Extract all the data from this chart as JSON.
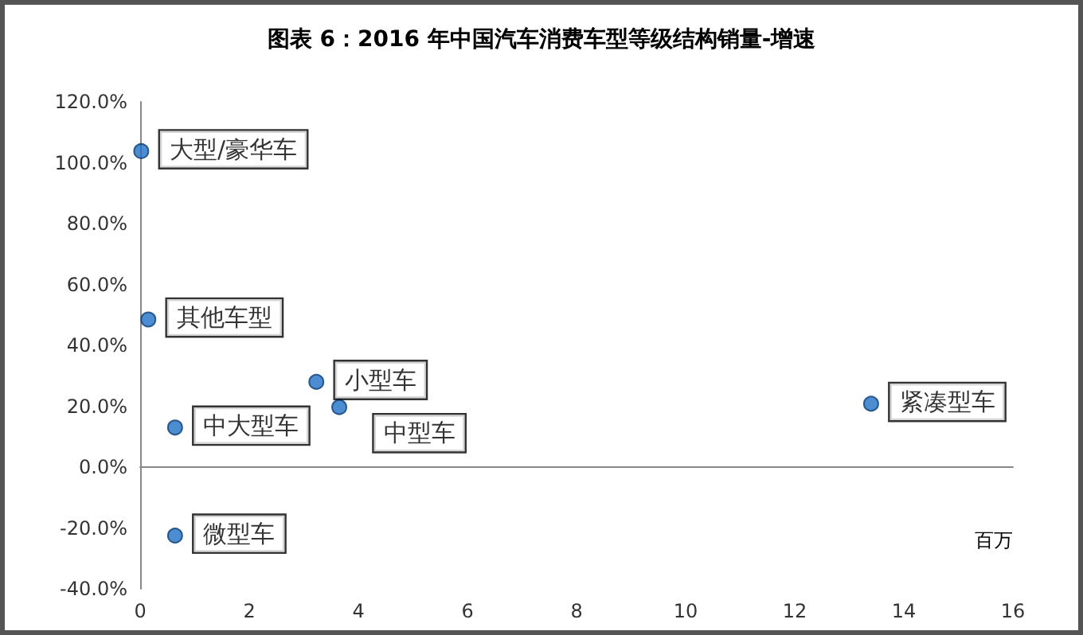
{
  "chart_data": {
    "type": "scatter",
    "title": "图表 6：2016 年中国汽车消费车型等级结构销量-增速",
    "xlabel": "百万",
    "series": [
      {
        "color": "#1f6fc5",
        "x": [
          0.02,
          0.15,
          0.64,
          0.64,
          3.23,
          3.65,
          13.4
        ],
        "values": [
          103.8,
          48.5,
          13.0,
          -22.5,
          28.0,
          19.7,
          20.8
        ],
        "value_labels": [
          "大型/豪华车",
          "其他车型",
          "中大型车",
          "微型车",
          "小型车",
          "中型车",
          "紧凑型车"
        ]
      }
    ],
    "xlim": [
      0,
      16
    ],
    "xticks": [
      0,
      2,
      4,
      6,
      8,
      10,
      12,
      14,
      16
    ],
    "ylim": [
      -40,
      120
    ],
    "yticks": [
      {
        "value": -40,
        "label": "-40.0%"
      },
      {
        "value": -20,
        "label": "-20.0%"
      },
      {
        "value": 0,
        "label": "0.0%"
      },
      {
        "value": 20,
        "label": "20.0%"
      },
      {
        "value": 40,
        "label": "40.0%"
      },
      {
        "value": 60,
        "label": "60.0%"
      },
      {
        "value": 80,
        "label": "80.0%"
      },
      {
        "value": 100,
        "label": "100.0%"
      },
      {
        "value": 120,
        "label": "120.0%"
      }
    ],
    "marker": "circle"
  }
}
